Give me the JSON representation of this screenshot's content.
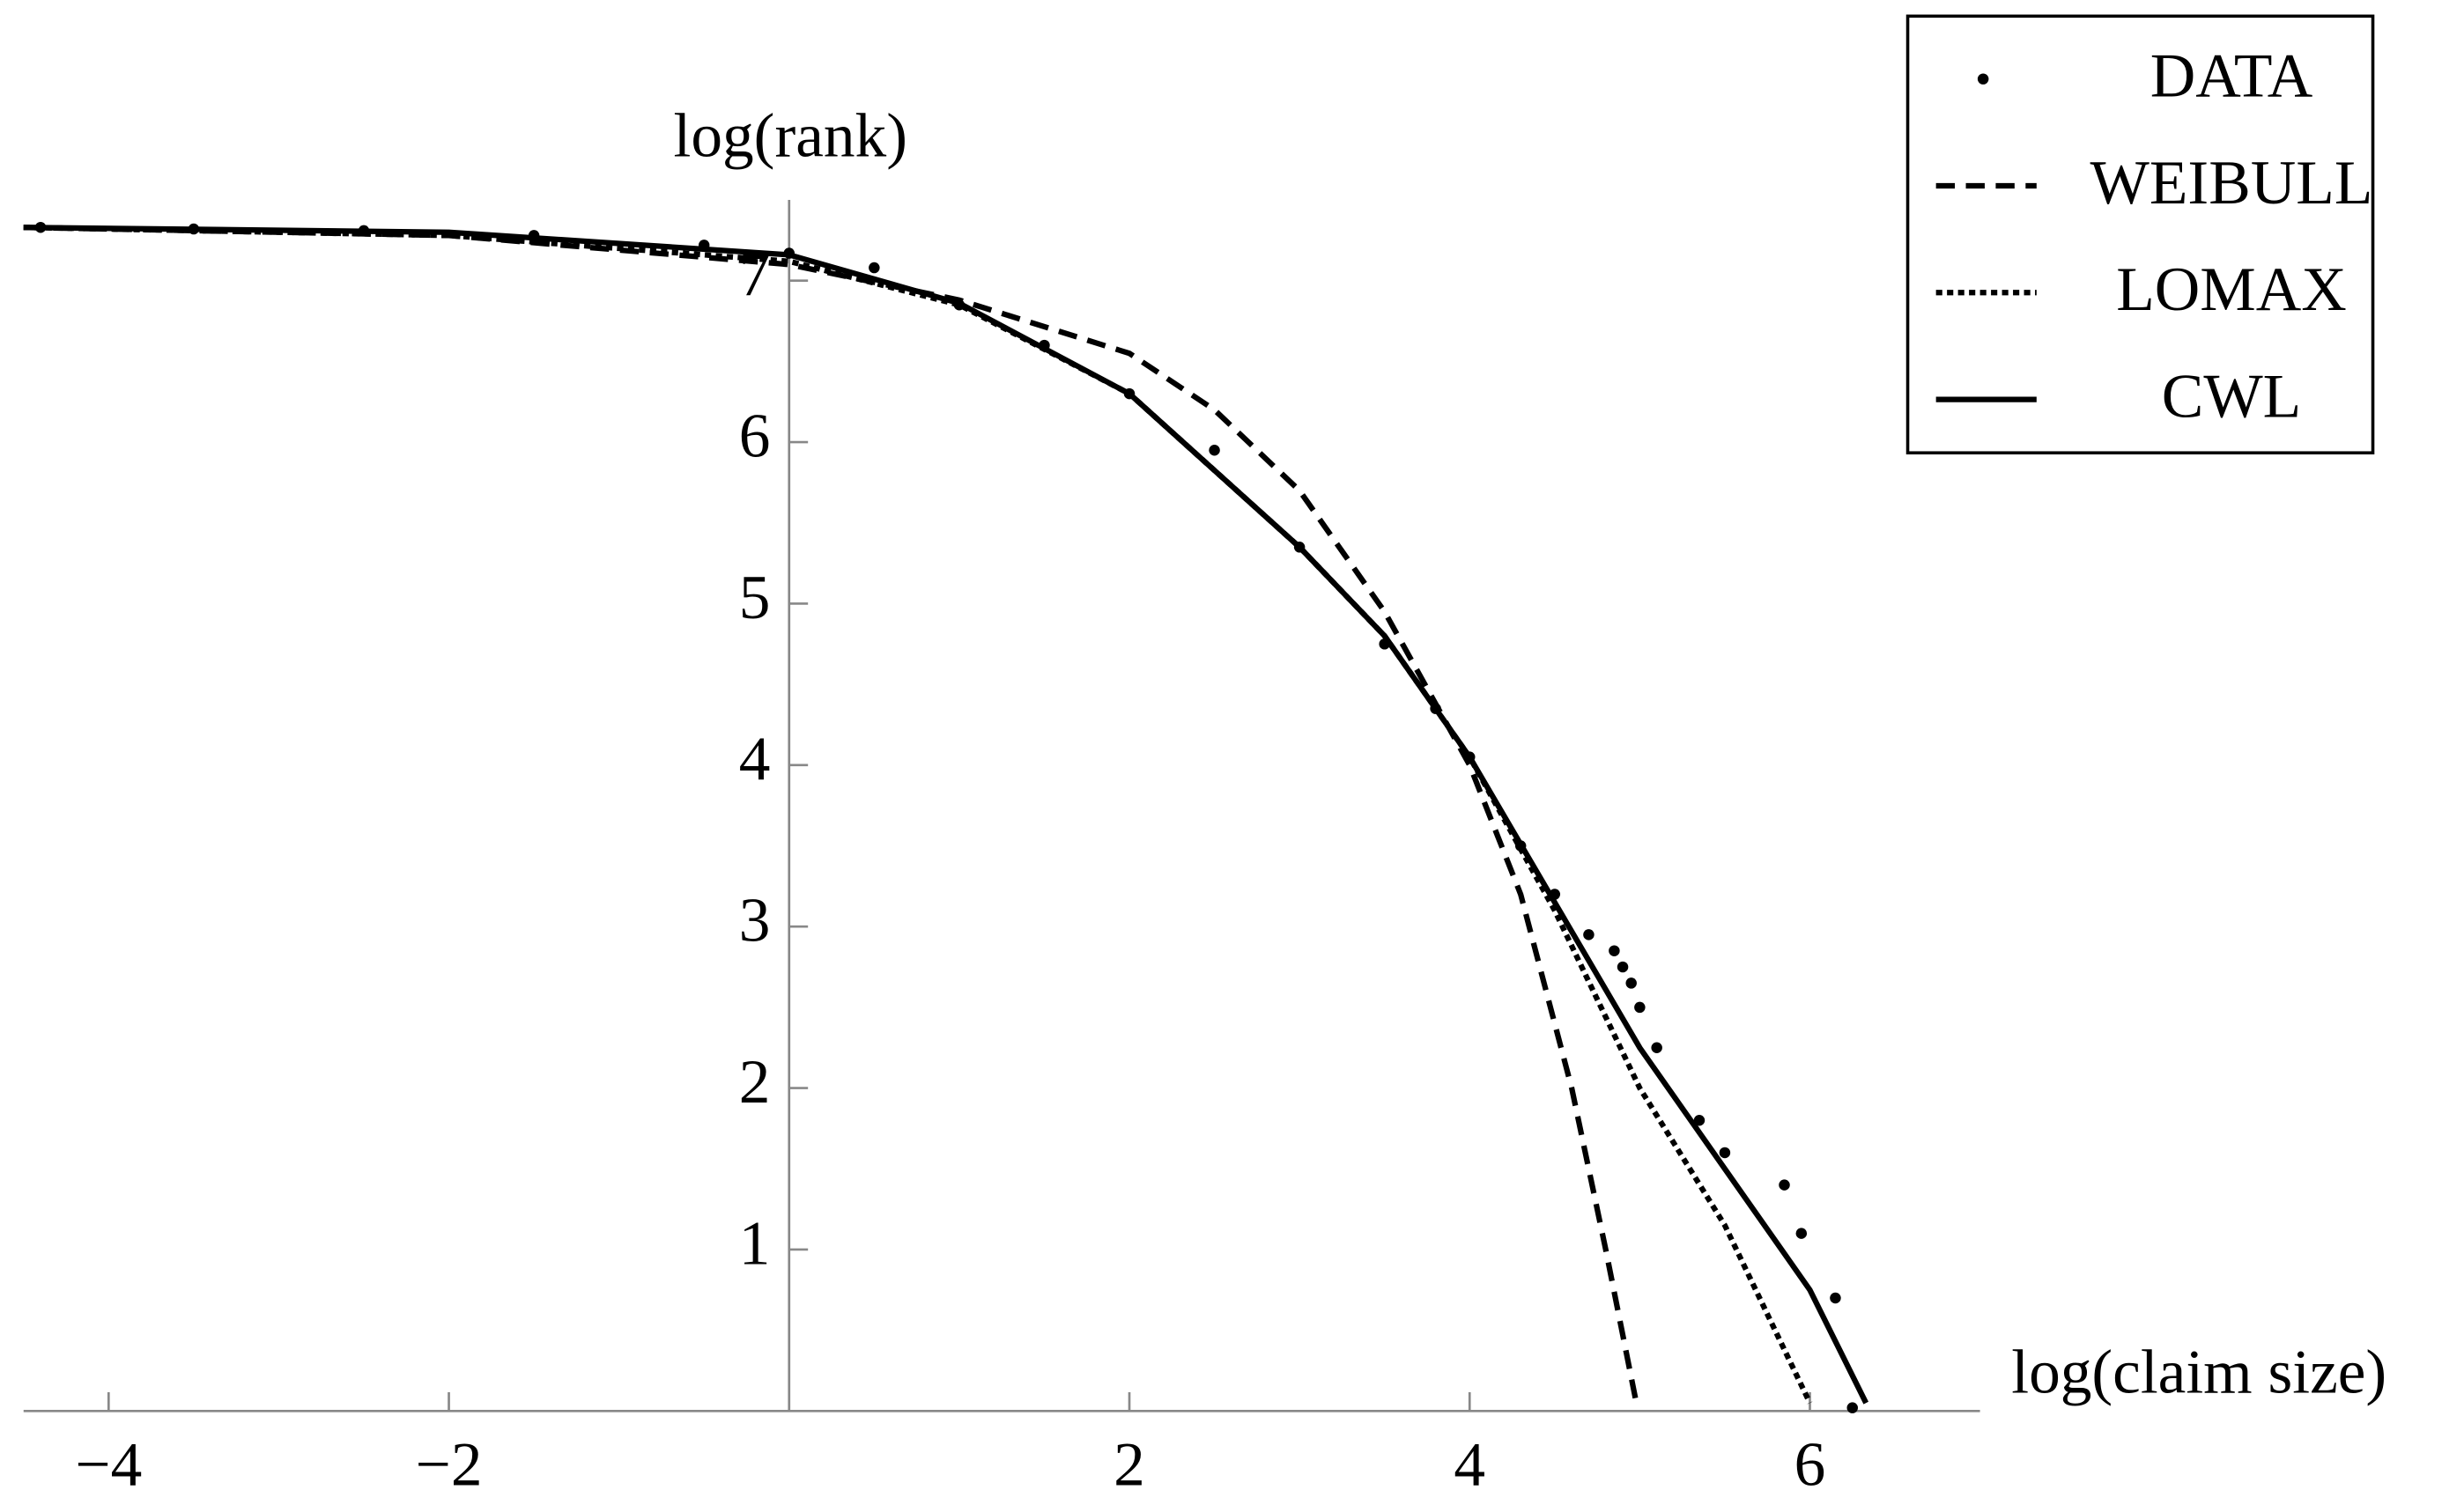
{
  "chart_data": {
    "type": "line",
    "xlabel": "log(claim size)",
    "ylabel": "log(rank)",
    "xlim": [
      -4.5,
      7
    ],
    "ylim": [
      0,
      7.5
    ],
    "xticks": [
      {
        "value": -4,
        "label": "−4"
      },
      {
        "value": -2,
        "label": "−2"
      },
      2,
      4,
      6
    ],
    "yticks": [
      1,
      2,
      3,
      4,
      5,
      6,
      7
    ],
    "legend": "top-right",
    "series": [
      {
        "name": "DATA",
        "color": "#000000",
        "style": "dots",
        "x": [
          -4.4,
          -3.5,
          -2.5,
          -1.5,
          -0.5,
          0,
          0.5,
          1,
          1.5,
          2,
          2.5,
          3,
          3.5,
          3.8,
          4,
          4.3,
          4.5,
          4.7,
          4.85,
          4.9,
          4.95,
          5.0,
          5.1,
          5.35,
          5.5,
          5.85,
          5.95,
          6.15,
          6.25
        ],
        "values": [
          7.33,
          7.32,
          7.31,
          7.28,
          7.22,
          7.17,
          7.08,
          6.85,
          6.6,
          6.3,
          5.95,
          5.35,
          4.75,
          4.35,
          4.05,
          3.5,
          3.2,
          2.95,
          2.85,
          2.75,
          2.65,
          2.5,
          2.25,
          1.8,
          1.6,
          1.4,
          1.1,
          0.7,
          0.02
        ]
      },
      {
        "name": "WEIBULL",
        "color": "#000000",
        "style": "dashed",
        "x": [
          -4.5,
          -2,
          0,
          1,
          2,
          2.5,
          3,
          3.5,
          4,
          4.3,
          4.6,
          4.8,
          4.98
        ],
        "values": [
          7.33,
          7.28,
          7.1,
          6.88,
          6.55,
          6.2,
          5.7,
          4.95,
          4.0,
          3.2,
          2.0,
          1.0,
          0.05
        ]
      },
      {
        "name": "LOMAX",
        "color": "#000000",
        "style": "dotted",
        "x": [
          -4.5,
          -2,
          0,
          1,
          2,
          3,
          3.5,
          4,
          4.5,
          5,
          5.5,
          6.0
        ],
        "values": [
          7.33,
          7.28,
          7.12,
          6.85,
          6.3,
          5.35,
          4.8,
          4.05,
          3.1,
          2.0,
          1.15,
          0.05
        ]
      },
      {
        "name": "CWL",
        "color": "#000000",
        "style": "solid",
        "x": [
          -4.5,
          -2,
          0,
          1,
          2,
          3,
          3.5,
          4,
          4.5,
          5,
          5.5,
          6,
          6.33
        ],
        "values": [
          7.33,
          7.3,
          7.16,
          6.86,
          6.3,
          5.35,
          4.8,
          4.05,
          3.15,
          2.25,
          1.5,
          0.75,
          0.05
        ]
      }
    ]
  }
}
